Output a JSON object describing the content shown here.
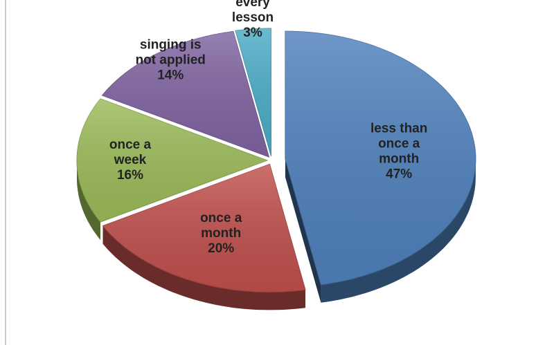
{
  "chart_data": {
    "type": "pie",
    "categories": [
      "less than\nonce a\nmonth",
      "once a\nmonth",
      "once a\nweek",
      "singing is\nnot applied",
      "every\nlesson"
    ],
    "values": [
      47,
      20,
      16,
      14,
      3
    ],
    "value_labels": [
      "47%",
      "20%",
      "16%",
      "14%",
      "3%"
    ],
    "colors": [
      "#4f81bd",
      "#c0504d",
      "#9bbb59",
      "#8064a2",
      "#4bacc6"
    ],
    "start_angle": 0,
    "direction": "clockwise",
    "explode": [
      0
    ]
  }
}
